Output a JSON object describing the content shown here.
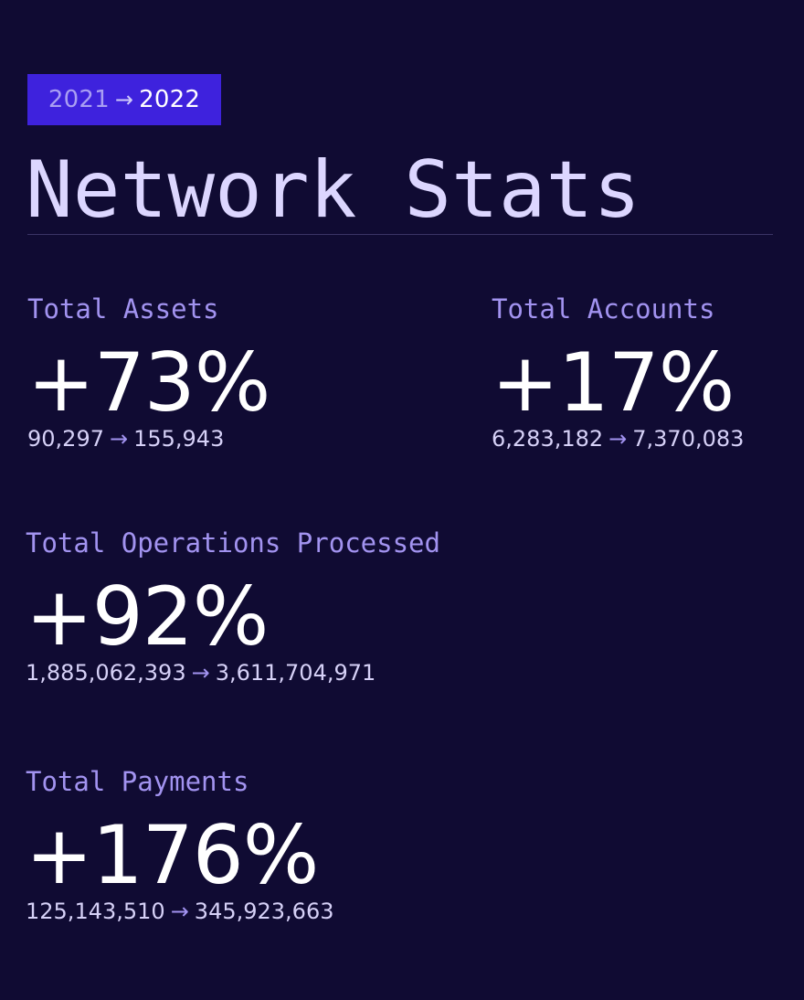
{
  "badge": {
    "from_year": "2021",
    "arrow": "→",
    "to_year": "2022"
  },
  "title": "Network Stats",
  "stats": [
    {
      "label": "Total Assets",
      "change": "+73%",
      "from": "90,297",
      "arrow": "→",
      "to": "155,943"
    },
    {
      "label": "Total Accounts",
      "change": "+17%",
      "from": "6,283,182",
      "arrow": "→",
      "to": "7,370,083"
    },
    {
      "label": "Total Operations Processed",
      "change": "+92%",
      "from": "1,885,062,393",
      "arrow": "→",
      "to": "3,611,704,971"
    },
    {
      "label": "Total Payments",
      "change": "+176%",
      "from": "125,143,510",
      "arrow": "→",
      "to": "345,923,663"
    }
  ],
  "colors": {
    "background": "#100b33",
    "badge": "#3e22dd",
    "title": "#dcd6ff",
    "label": "#a293f0",
    "value": "#ffffff"
  }
}
